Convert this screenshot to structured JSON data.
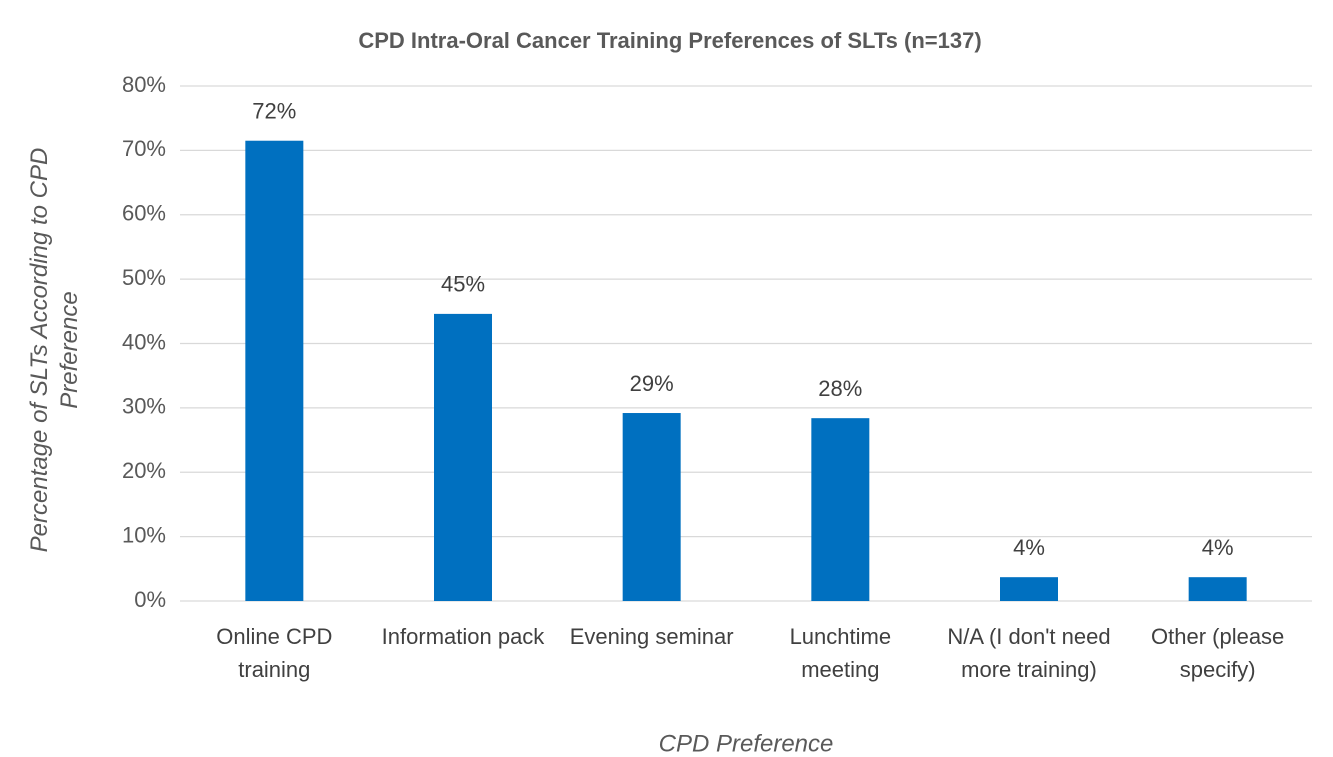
{
  "chart_data": {
    "type": "bar",
    "title": "CPD Intra-Oral Cancer Training Preferences of SLTs (n=137)",
    "x_label": "CPD Preference",
    "y_label": "Percentage of SLTs According to CPD Preference",
    "categories": [
      "Online CPD training",
      "Information pack",
      "Evening seminar",
      "Lunchtime meeting",
      "N/A (I don't need more training)",
      "Other (please specify)"
    ],
    "values": [
      71.5,
      44.6,
      29.2,
      28.4,
      3.7,
      3.7
    ],
    "value_labels": [
      "72%",
      "45%",
      "29%",
      "28%",
      "4%",
      "4%"
    ],
    "color": "#0070c0",
    "ylim": [
      0,
      80
    ],
    "yticks": [
      {
        "value": 0,
        "label": "0%"
      },
      {
        "value": 10,
        "label": "10%"
      },
      {
        "value": 20,
        "label": "20%"
      },
      {
        "value": 30,
        "label": "30%"
      },
      {
        "value": 40,
        "label": "40%"
      },
      {
        "value": 50,
        "label": "50%"
      },
      {
        "value": 60,
        "label": "60%"
      },
      {
        "value": 70,
        "label": "70%"
      },
      {
        "value": 80,
        "label": "80%"
      }
    ],
    "grid": true
  }
}
